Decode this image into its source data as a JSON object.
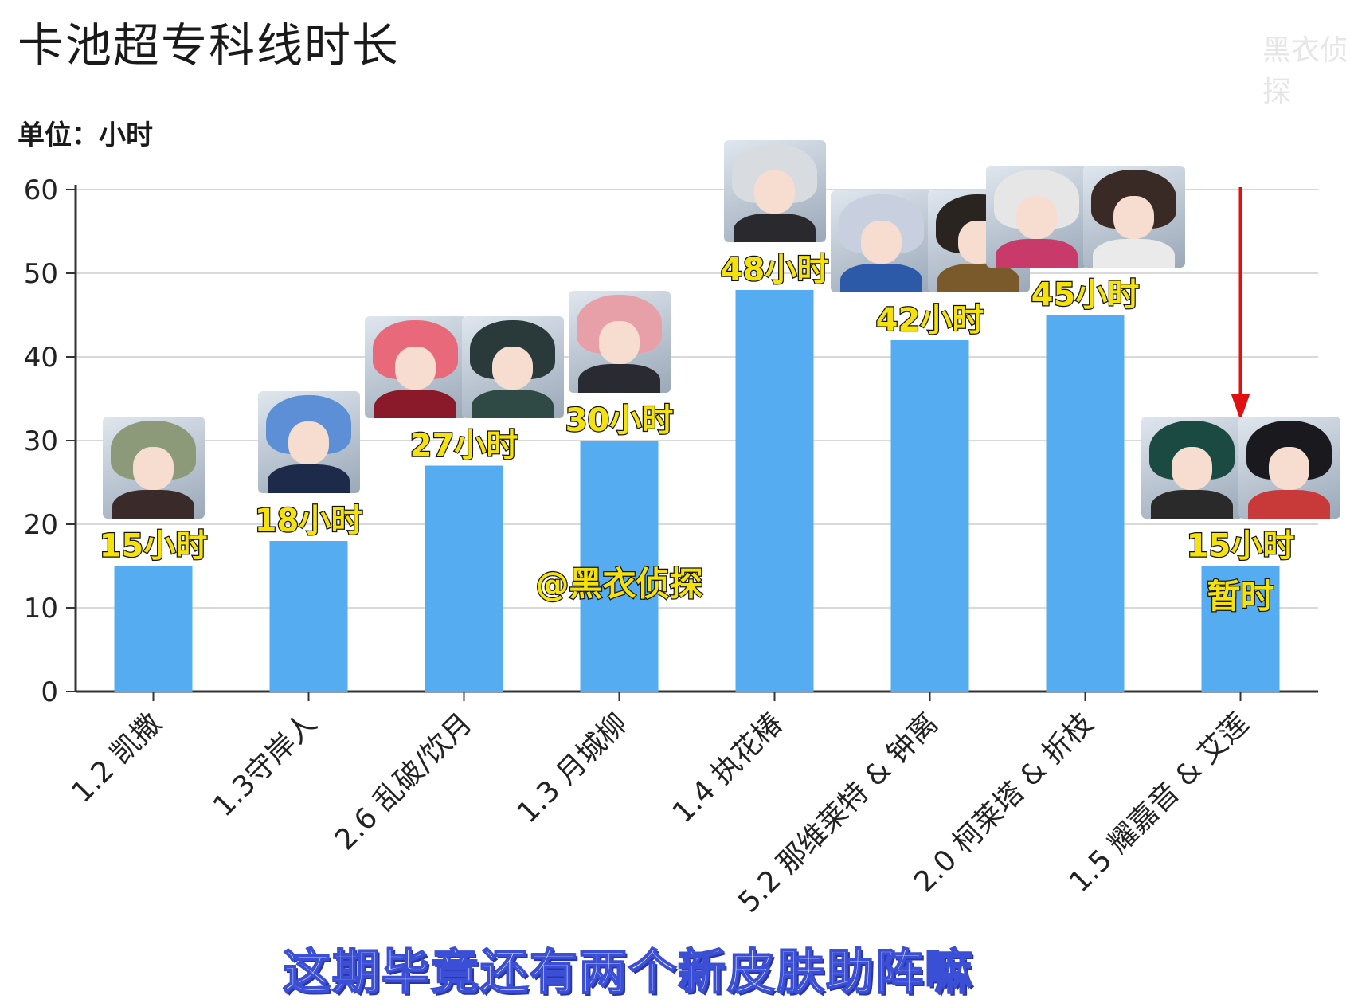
{
  "header": {
    "title": "卡池超专科线时长",
    "unit": "单位：小时"
  },
  "subtitle_caption": "这期毕竟还有两个新皮肤助阵嘛",
  "watermark_text": "黑衣侦探",
  "colors": {
    "bar": "#55acf0",
    "label_fill": "#f5e20a",
    "label_stroke": "#111111",
    "arrow": "#e01010",
    "grid": "#d9d9d9",
    "axis": "#333333"
  },
  "chart_data": {
    "type": "bar",
    "categories": [
      "1.2 凯撒",
      "1.3守岸人",
      "2.6 乱破/饮月",
      "1.3 月城柳",
      "1.4 执花椿",
      "5.2 那维莱特 & 钟离",
      "2.0 柯莱塔 & 折枝",
      "1.5 耀嘉音 & 艾莲"
    ],
    "values": [
      15,
      18,
      27,
      30,
      48,
      42,
      45,
      15
    ],
    "data_labels": [
      "15小时",
      "18小时",
      "27小时",
      "30小时",
      "48小时",
      "42小时",
      "45小时",
      "15小时"
    ],
    "ylim": [
      0,
      60
    ],
    "yticks": [
      0,
      10,
      20,
      30,
      40,
      50,
      60
    ],
    "grid": true,
    "annotations": {
      "handle": "@黑衣侦探",
      "last_bar_note": "暂时"
    },
    "portraits": [
      {
        "category_index": 0,
        "characters": [
          {
            "name": "凯撒",
            "hair": "#8c9a7a",
            "body": "#3a2a2a"
          }
        ]
      },
      {
        "category_index": 1,
        "characters": [
          {
            "name": "守岸人",
            "hair": "#5c8fd6",
            "body": "#1e2a4a"
          }
        ]
      },
      {
        "category_index": 2,
        "characters": [
          {
            "name": "乱破",
            "hair": "#e86a7a",
            "body": "#8a1a2a"
          },
          {
            "name": "饮月",
            "hair": "#2a3a3a",
            "body": "#2f4a44"
          }
        ]
      },
      {
        "category_index": 3,
        "characters": [
          {
            "name": "月城柳",
            "hair": "#e8a0a8",
            "body": "#2a2a32"
          }
        ]
      },
      {
        "category_index": 4,
        "characters": [
          {
            "name": "执花椿",
            "hair": "#d8dce0",
            "body": "#2a2a2e"
          }
        ]
      },
      {
        "category_index": 5,
        "characters": [
          {
            "name": "那维莱特",
            "hair": "#c8d0e0",
            "body": "#2c5aa8"
          },
          {
            "name": "钟离",
            "hair": "#2a2420",
            "body": "#7a5a2a"
          }
        ]
      },
      {
        "category_index": 6,
        "characters": [
          {
            "name": "柯莱塔",
            "hair": "#e6e6e6",
            "body": "#c83a6a"
          },
          {
            "name": "折枝",
            "hair": "#3a2a26",
            "body": "#eaeaea"
          }
        ]
      },
      {
        "category_index": 7,
        "characters": [
          {
            "name": "耀嘉音",
            "hair": "#1a4a42",
            "body": "#2a2a2a"
          },
          {
            "name": "艾莲",
            "hair": "#1a1a1e",
            "body": "#c83a3a"
          }
        ]
      }
    ]
  }
}
